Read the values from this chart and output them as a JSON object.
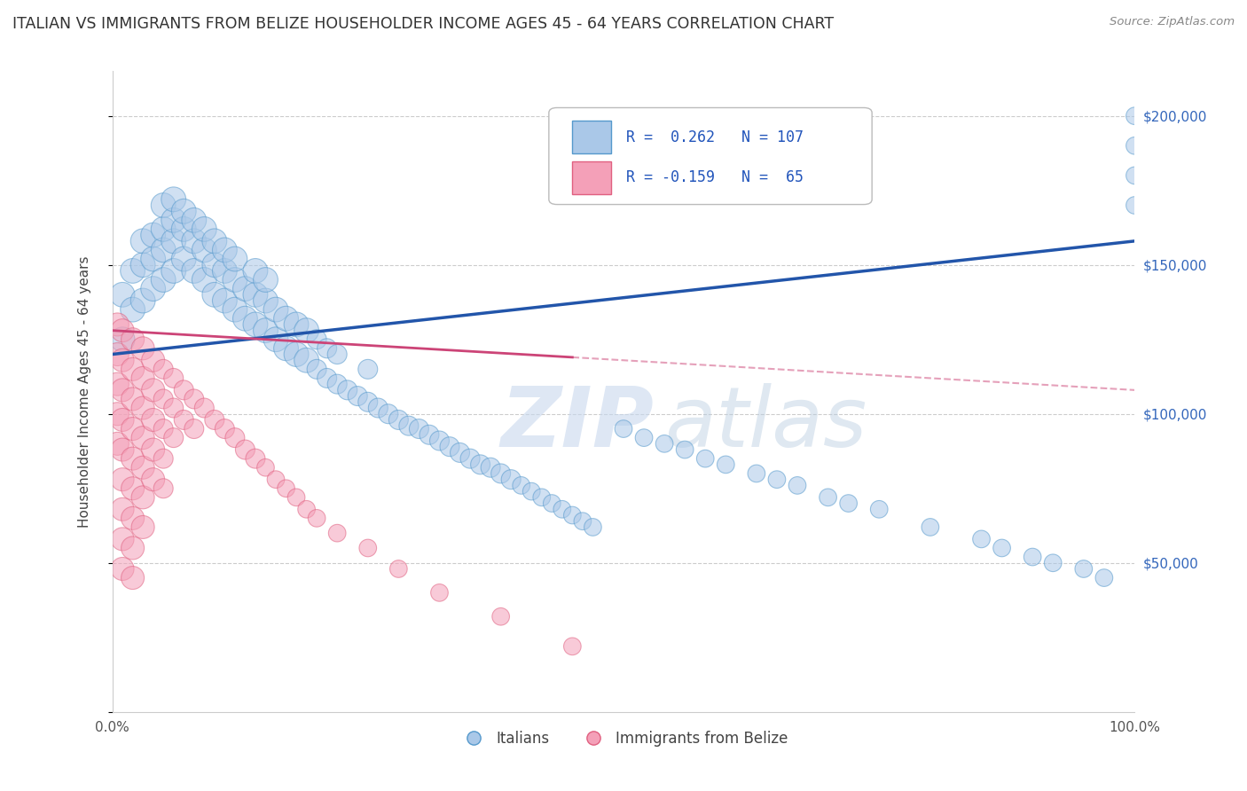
{
  "title": "ITALIAN VS IMMIGRANTS FROM BELIZE HOUSEHOLDER INCOME AGES 45 - 64 YEARS CORRELATION CHART",
  "source": "Source: ZipAtlas.com",
  "ylabel": "Householder Income Ages 45 - 64 years",
  "xlim": [
    0,
    100
  ],
  "ylim": [
    0,
    215000
  ],
  "yticks": [
    0,
    50000,
    100000,
    150000,
    200000
  ],
  "ytick_labels": [
    "",
    "$50,000",
    "$100,000",
    "$150,000",
    "$200,000"
  ],
  "xticks": [
    0,
    100
  ],
  "xtick_labels": [
    "0.0%",
    "100.0%"
  ],
  "blue_R": 0.262,
  "blue_N": 107,
  "pink_R": -0.159,
  "pink_N": 65,
  "blue_color": "#aac8e8",
  "blue_edge": "#5599cc",
  "pink_color": "#f4a0b8",
  "pink_edge": "#e06080",
  "blue_line_color": "#2255aa",
  "pink_line_color": "#cc4477",
  "pink_line_dash": true,
  "watermark_zip": "ZIP",
  "watermark_atlas": "atlas",
  "legend_labels": [
    "Italians",
    "Immigrants from Belize"
  ],
  "blue_line_y0": 120000,
  "blue_line_y1": 158000,
  "pink_line_y0": 128000,
  "pink_line_y1": 108000,
  "blue_scatter_x": [
    1,
    1,
    2,
    2,
    3,
    3,
    3,
    4,
    4,
    4,
    5,
    5,
    5,
    5,
    6,
    6,
    6,
    6,
    7,
    7,
    7,
    8,
    8,
    8,
    9,
    9,
    9,
    10,
    10,
    10,
    11,
    11,
    11,
    12,
    12,
    12,
    13,
    13,
    14,
    14,
    14,
    15,
    15,
    15,
    16,
    16,
    17,
    17,
    18,
    18,
    19,
    19,
    20,
    20,
    21,
    21,
    22,
    22,
    23,
    24,
    25,
    25,
    26,
    27,
    28,
    29,
    30,
    31,
    32,
    33,
    34,
    35,
    36,
    37,
    38,
    39,
    40,
    41,
    42,
    43,
    44,
    45,
    46,
    47,
    50,
    52,
    54,
    56,
    58,
    60,
    63,
    65,
    67,
    70,
    72,
    75,
    80,
    85,
    87,
    90,
    92,
    95,
    97,
    100,
    100,
    100,
    100
  ],
  "blue_scatter_y": [
    125000,
    140000,
    135000,
    148000,
    138000,
    150000,
    158000,
    142000,
    152000,
    160000,
    145000,
    155000,
    162000,
    170000,
    148000,
    158000,
    165000,
    172000,
    152000,
    162000,
    168000,
    148000,
    158000,
    165000,
    145000,
    155000,
    162000,
    140000,
    150000,
    158000,
    138000,
    148000,
    155000,
    135000,
    145000,
    152000,
    132000,
    142000,
    130000,
    140000,
    148000,
    128000,
    138000,
    145000,
    125000,
    135000,
    122000,
    132000,
    120000,
    130000,
    118000,
    128000,
    115000,
    125000,
    112000,
    122000,
    110000,
    120000,
    108000,
    106000,
    104000,
    115000,
    102000,
    100000,
    98000,
    96000,
    95000,
    93000,
    91000,
    89000,
    87000,
    85000,
    83000,
    82000,
    80000,
    78000,
    76000,
    74000,
    72000,
    70000,
    68000,
    66000,
    64000,
    62000,
    95000,
    92000,
    90000,
    88000,
    85000,
    83000,
    80000,
    78000,
    76000,
    72000,
    70000,
    68000,
    62000,
    58000,
    55000,
    52000,
    50000,
    48000,
    45000,
    200000,
    190000,
    180000,
    170000
  ],
  "pink_scatter_x": [
    0.5,
    0.5,
    0.5,
    0.5,
    0.5,
    1,
    1,
    1,
    1,
    1,
    1,
    1,
    1,
    1,
    2,
    2,
    2,
    2,
    2,
    2,
    2,
    2,
    2,
    3,
    3,
    3,
    3,
    3,
    3,
    3,
    4,
    4,
    4,
    4,
    4,
    5,
    5,
    5,
    5,
    5,
    6,
    6,
    6,
    7,
    7,
    8,
    8,
    9,
    10,
    11,
    12,
    13,
    14,
    15,
    16,
    17,
    18,
    19,
    20,
    22,
    25,
    28,
    32,
    38,
    45
  ],
  "pink_scatter_y": [
    130000,
    120000,
    110000,
    100000,
    90000,
    128000,
    118000,
    108000,
    98000,
    88000,
    78000,
    68000,
    58000,
    48000,
    125000,
    115000,
    105000,
    95000,
    85000,
    75000,
    65000,
    55000,
    45000,
    122000,
    112000,
    102000,
    92000,
    82000,
    72000,
    62000,
    118000,
    108000,
    98000,
    88000,
    78000,
    115000,
    105000,
    95000,
    85000,
    75000,
    112000,
    102000,
    92000,
    108000,
    98000,
    105000,
    95000,
    102000,
    98000,
    95000,
    92000,
    88000,
    85000,
    82000,
    78000,
    75000,
    72000,
    68000,
    65000,
    60000,
    55000,
    48000,
    40000,
    32000,
    22000
  ]
}
